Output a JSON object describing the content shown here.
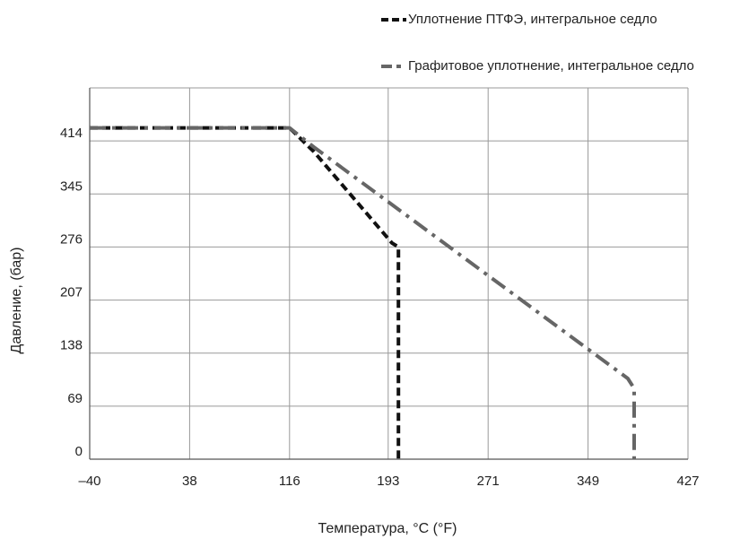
{
  "chart_data": {
    "type": "line",
    "xlabel": "Температура, °C (°F)",
    "ylabel": "Давление, (бар)",
    "xlim": [
      -40,
      427
    ],
    "ylim": [
      0,
      483
    ],
    "x_ticks": [
      "–40",
      "38",
      "116",
      "193",
      "271",
      "349",
      "427"
    ],
    "y_ticks": [
      "0",
      "69",
      "138",
      "207",
      "276",
      "345",
      "414"
    ],
    "grid": true,
    "legend_position": "top-right",
    "series": [
      {
        "name": "Уплотнение ПТФЭ, интегральное седло",
        "color": "#111111",
        "style": "dashed",
        "points": [
          [
            -40,
            431
          ],
          [
            116,
            431
          ],
          [
            135,
            400
          ],
          [
            196,
            281
          ],
          [
            201,
            276
          ],
          [
            201,
            0
          ]
        ]
      },
      {
        "name": "Графитовое уплотнение, интегральное седло",
        "color": "#666666",
        "style": "dashdot",
        "points": [
          [
            -40,
            431
          ],
          [
            116,
            431
          ],
          [
            135,
            406
          ],
          [
            380,
            105
          ],
          [
            385,
            92
          ],
          [
            385,
            0
          ]
        ]
      }
    ]
  }
}
